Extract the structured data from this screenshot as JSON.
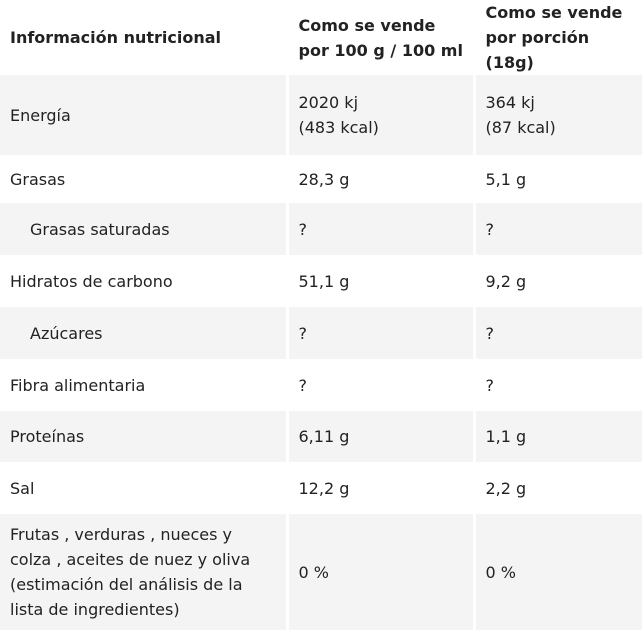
{
  "table": {
    "header": [
      "Información nutricional",
      [
        "Como se vende",
        "por 100 g / 100 ml"
      ],
      [
        "Como se vende",
        "por porción (18g)"
      ]
    ],
    "rows": [
      [
        "Energía",
        [
          "2020 kj",
          "(483 kcal)"
        ],
        [
          "364 kj",
          "(87 kcal)"
        ]
      ],
      [
        "Grasas",
        "28,3 g",
        "5,1 g"
      ],
      [
        "Grasas saturadas",
        "?",
        "?"
      ],
      [
        "Hidratos de carbono",
        "51,1 g",
        "9,2 g"
      ],
      [
        "Azúcares",
        "?",
        "?"
      ],
      [
        "Fibra alimentaria",
        "?",
        "?"
      ],
      [
        "Proteínas",
        "6,11 g",
        "1,1 g"
      ],
      [
        "Sal",
        "12,2 g",
        "2,2 g"
      ],
      [
        "Frutas , verduras , nueces y colza , aceites de nuez y oliva (estimación del análisis de la lista de ingredientes)",
        "0 %",
        "0 %"
      ]
    ],
    "indented": [
      2,
      4
    ]
  }
}
